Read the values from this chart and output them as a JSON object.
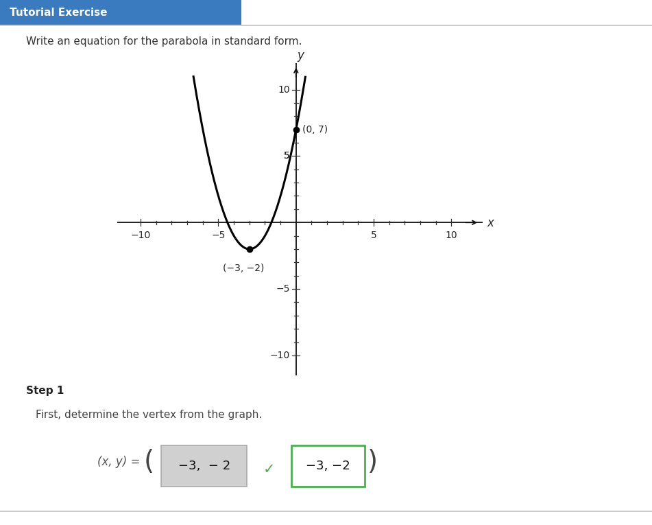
{
  "title_bg_color": "#3a7abf",
  "title_text": "Tutorial Exercise",
  "title_text_color": "#ffffff",
  "subtitle_text": "Write an equation for the parabola in standard form.",
  "step_text": "Step 1",
  "step_desc": "First, determine the vertex from the graph.",
  "answer_label": "(x, y) =",
  "answer_box1_text": "−3,  − 2",
  "answer_box2_text": "−3, −2",
  "checkmark_color": "#4caf50",
  "vertex_x": -3,
  "vertex_y": -2,
  "point2_x": 0,
  "point2_y": 7,
  "xlim": [
    -11.5,
    12.0
  ],
  "ylim": [
    -11.5,
    12.0
  ],
  "curve_color": "#000000",
  "curve_linewidth": 2.2,
  "point_color": "#000000",
  "point_size": 7,
  "axis_color": "#111111",
  "background_color": "#ffffff",
  "border_color": "#cccccc",
  "box1_bg": "#d0d0d0",
  "box1_border": "#aaaaaa",
  "box2_bg": "#ffffff",
  "box2_border": "#4caf50"
}
